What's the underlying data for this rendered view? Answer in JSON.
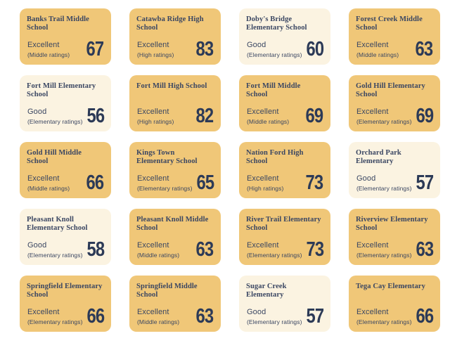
{
  "colors": {
    "gold_bg": "#f0c778",
    "cream_bg": "#fbf3e1",
    "text_navy": "#3a4662",
    "score_navy": "#2c3a57"
  },
  "cards": [
    {
      "name": "Banks Trail Middle School",
      "rating": "Excellent",
      "category": "(Middle ratings)",
      "score": 67,
      "variant": "gold"
    },
    {
      "name": "Catawba Ridge High School",
      "rating": "Excellent",
      "category": "(High ratings)",
      "score": 83,
      "variant": "gold"
    },
    {
      "name": "Doby's Bridge Elementary School",
      "rating": "Good",
      "category": "(Elementary ratings)",
      "score": 60,
      "variant": "cream"
    },
    {
      "name": "Forest Creek Middle School",
      "rating": "Excellent",
      "category": "(Middle ratings)",
      "score": 63,
      "variant": "gold"
    },
    {
      "name": "Fort Mill Elementary School",
      "rating": "Good",
      "category": "(Elementary ratings)",
      "score": 56,
      "variant": "cream"
    },
    {
      "name": "Fort Mill High School",
      "rating": "Excellent",
      "category": "(High ratings)",
      "score": 82,
      "variant": "gold"
    },
    {
      "name": "Fort Mill Middle School",
      "rating": "Excellent",
      "category": "(Middle ratings)",
      "score": 69,
      "variant": "gold"
    },
    {
      "name": "Gold Hill Elementary School",
      "rating": "Excellent",
      "category": "(Elementary ratings)",
      "score": 69,
      "variant": "gold"
    },
    {
      "name": "Gold Hill Middle School",
      "rating": "Excellent",
      "category": "(Middle ratings)",
      "score": 66,
      "variant": "gold"
    },
    {
      "name": "Kings Town Elementary School",
      "rating": "Excellent",
      "category": "(Elementary ratings)",
      "score": 65,
      "variant": "gold"
    },
    {
      "name": "Nation Ford High School",
      "rating": "Excellent",
      "category": "(High ratings)",
      "score": 73,
      "variant": "gold"
    },
    {
      "name": "Orchard Park Elementary",
      "rating": "Good",
      "category": "(Elementary ratings)",
      "score": 57,
      "variant": "cream"
    },
    {
      "name": "Pleasant Knoll Elementary School",
      "rating": "Good",
      "category": "(Elementary ratings)",
      "score": 58,
      "variant": "cream"
    },
    {
      "name": "Pleasant Knoll Middle School",
      "rating": "Excellent",
      "category": "(Middle ratings)",
      "score": 63,
      "variant": "gold"
    },
    {
      "name": "River Trail Elementary School",
      "rating": "Excellent",
      "category": "(Elementary ratings)",
      "score": 73,
      "variant": "gold"
    },
    {
      "name": "Riverview Elementary School",
      "rating": "Excellent",
      "category": "(Elementary ratings)",
      "score": 63,
      "variant": "gold"
    },
    {
      "name": "Springfield Elementary School",
      "rating": "Excellent",
      "category": "(Elementary ratings)",
      "score": 66,
      "variant": "gold"
    },
    {
      "name": "Springfield Middle School",
      "rating": "Excellent",
      "category": "(Middle ratings)",
      "score": 63,
      "variant": "gold"
    },
    {
      "name": "Sugar Creek Elementary",
      "rating": "Good",
      "category": "(Elementary ratings)",
      "score": 57,
      "variant": "cream"
    },
    {
      "name": "Tega Cay Elementary",
      "rating": "Excellent",
      "category": "(Elementary ratings)",
      "score": 66,
      "variant": "gold"
    }
  ]
}
